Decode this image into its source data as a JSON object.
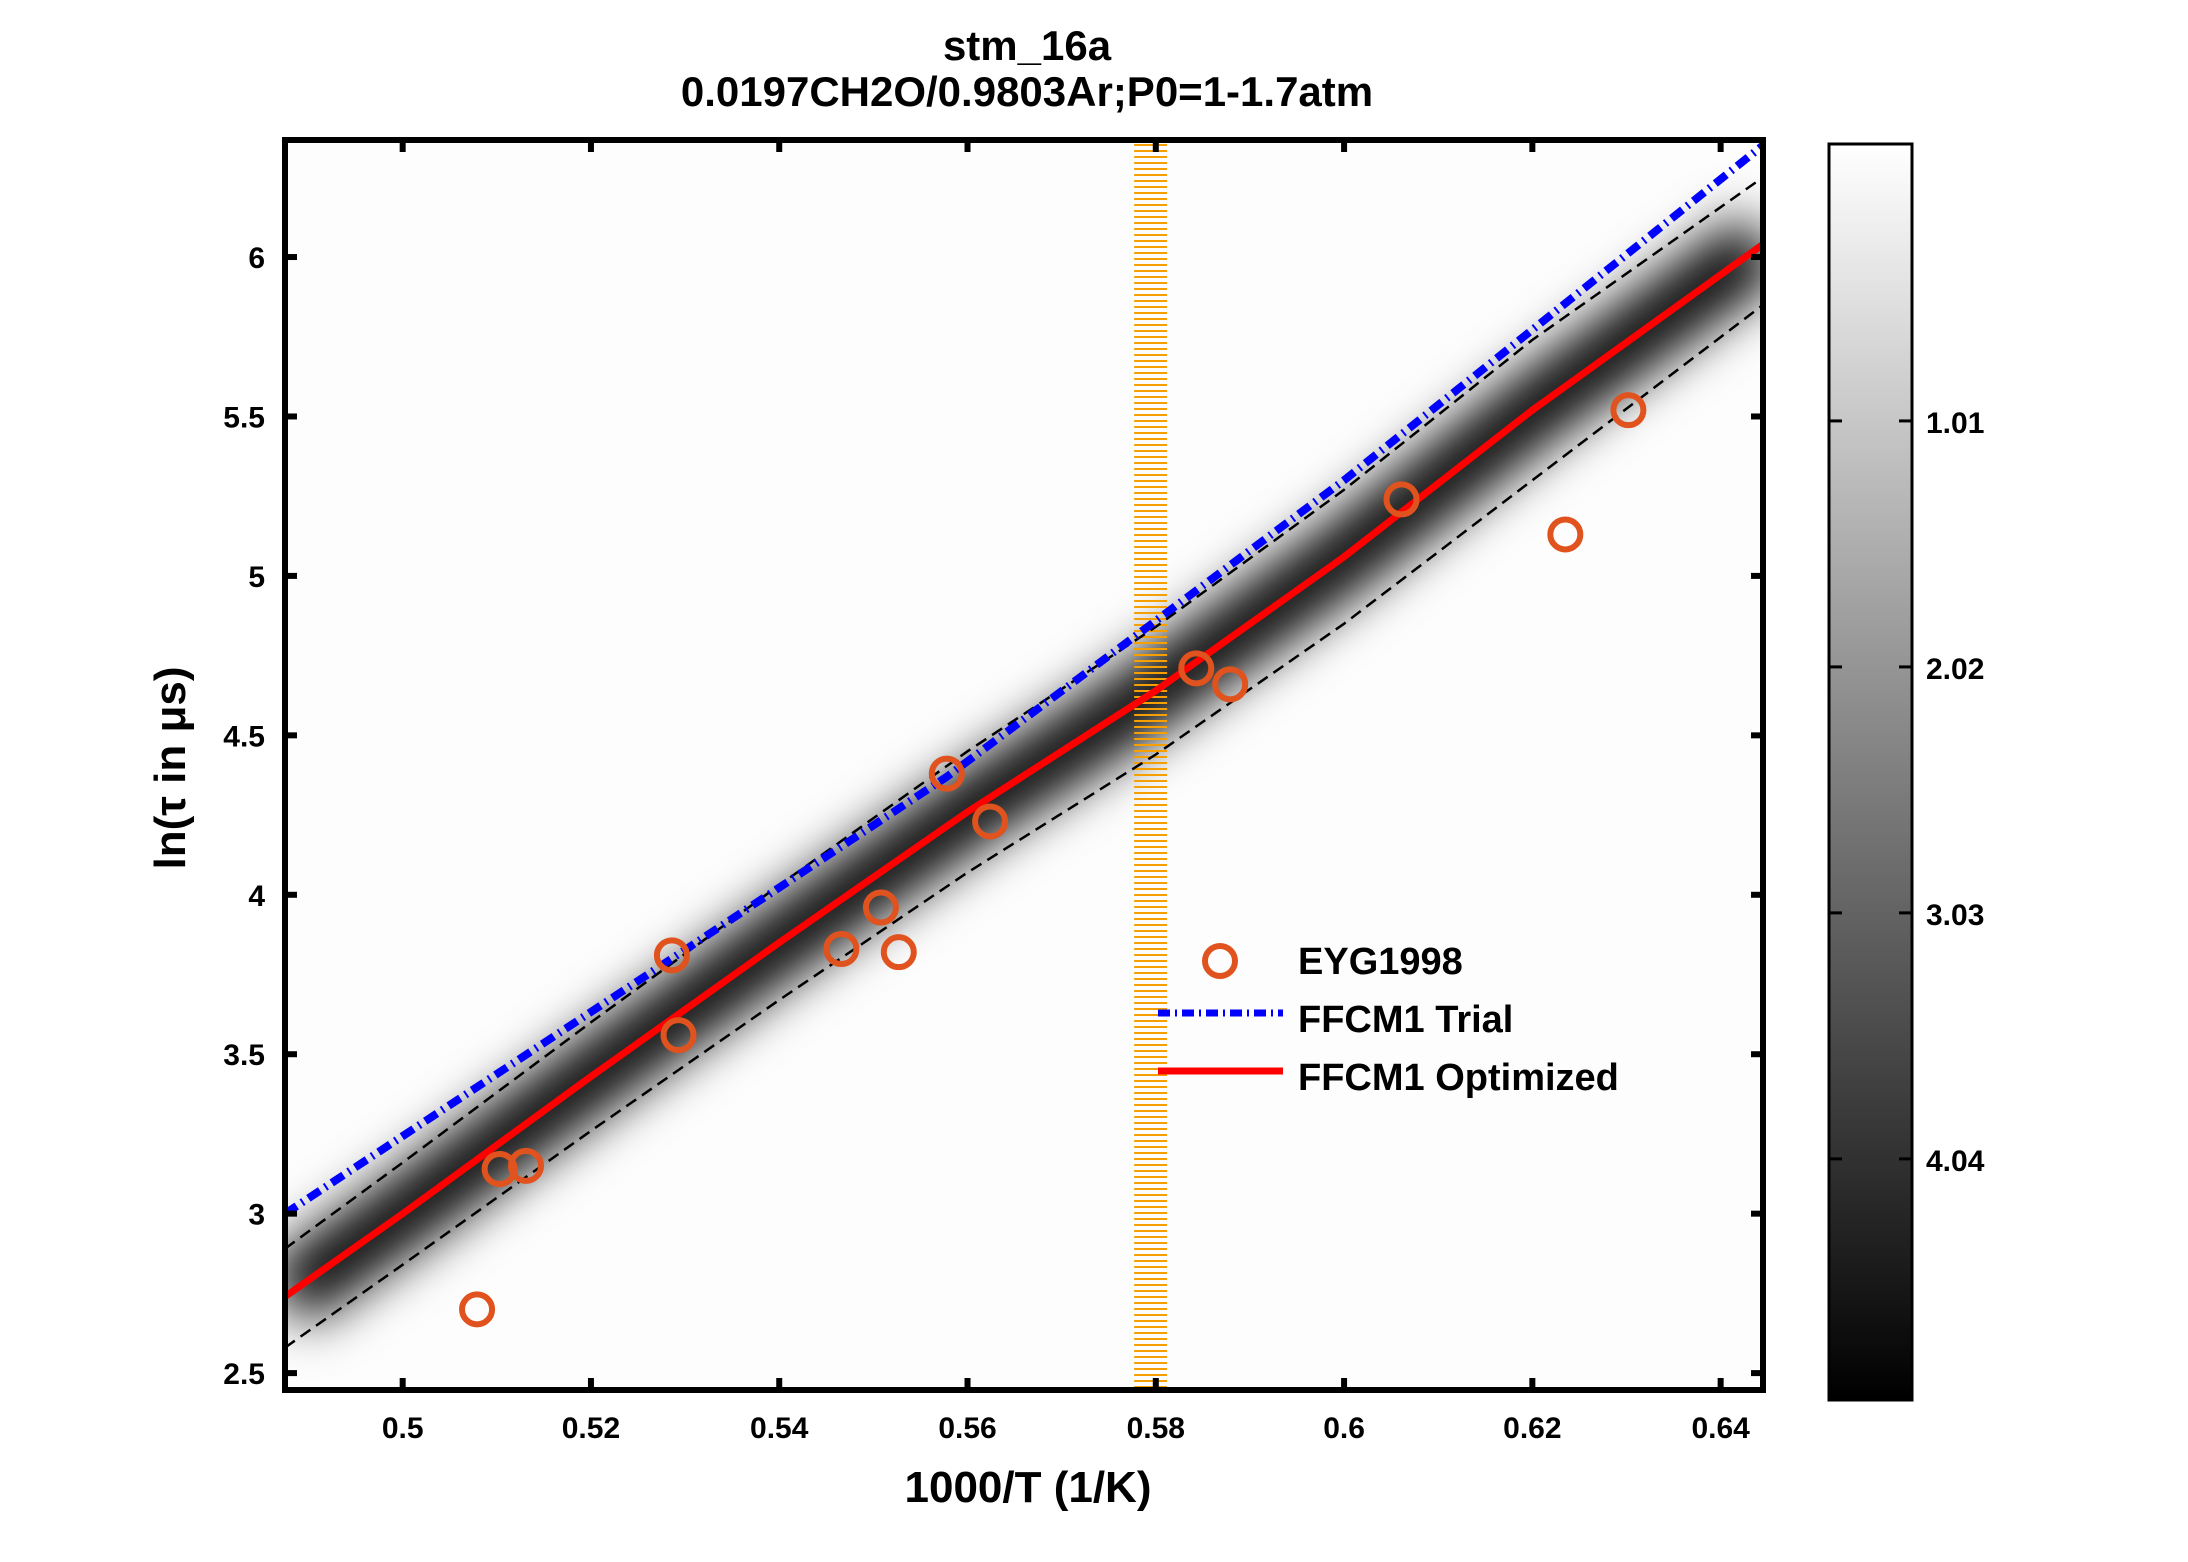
{
  "chart_data": {
    "type": "scatter",
    "title": "stm_16a",
    "subtitle": "0.0197CH2O/0.9803Ar;P0=1-1.7atm",
    "xlabel": "1000/T (1/K)",
    "ylabel": "ln(τ in μs)",
    "xlim": [
      0.4875,
      0.6445
    ],
    "ylim": [
      2.447,
      6.367
    ],
    "xticks": [
      "0.5",
      "0.52",
      "0.54",
      "0.56",
      "0.58",
      "0.6",
      "0.62",
      "0.64"
    ],
    "yticks": [
      "2.5",
      "3",
      "3.5",
      "4",
      "4.5",
      "5",
      "5.5",
      "6"
    ],
    "grid": false,
    "legend_placement": "center-right",
    "series": [
      {
        "name": "EYG1998",
        "kind": "markers",
        "marker": "circle",
        "color": "#e0521e",
        "x": [
          0.5079,
          0.5103,
          0.5131,
          0.5286,
          0.5293,
          0.5466,
          0.5508,
          0.5527,
          0.5578,
          0.5624,
          0.5843,
          0.5879,
          0.6061,
          0.6235,
          0.6302
        ],
        "y": [
          2.7,
          3.14,
          3.15,
          3.81,
          3.56,
          3.83,
          3.96,
          3.82,
          4.38,
          4.23,
          4.71,
          4.66,
          5.24,
          5.13,
          5.52
        ]
      },
      {
        "name": "FFCM1 Trial",
        "kind": "line",
        "style": "dash-dot",
        "color": "#0000ff",
        "x": [
          0.4875,
          0.5286,
          0.5578,
          0.6,
          0.6445
        ],
        "y": [
          3.0,
          3.8,
          4.37,
          5.3,
          6.35
        ]
      },
      {
        "name": "FFCM1 Optimized",
        "kind": "line",
        "style": "solid",
        "color": "#ff0000",
        "x": [
          0.4875,
          0.5,
          0.52,
          0.54,
          0.56,
          0.58,
          0.6,
          0.62,
          0.6445
        ],
        "y": [
          2.74,
          3.0,
          3.43,
          3.85,
          4.26,
          4.64,
          5.06,
          5.52,
          6.04
        ]
      }
    ],
    "uncertainty_bounds": {
      "color": "#000000",
      "style": "dashed",
      "x": [
        0.4875,
        0.5,
        0.52,
        0.54,
        0.56,
        0.58,
        0.6,
        0.62,
        0.6445
      ],
      "upper": [
        2.89,
        3.16,
        3.6,
        4.03,
        4.45,
        4.84,
        5.27,
        5.74,
        6.25
      ],
      "lower": [
        2.58,
        2.84,
        3.26,
        3.67,
        4.07,
        4.44,
        4.85,
        5.3,
        5.85
      ]
    },
    "highlight_band": {
      "x_range": [
        0.5777,
        0.5812
      ],
      "color": "#f5a000"
    },
    "colorbar": {
      "range": [
        -0.127,
        5.03
      ],
      "ticks": [
        "1.01",
        "2.02",
        "3.03",
        "4.04"
      ],
      "tick_values": [
        1.01,
        2.02,
        3.03,
        4.04
      ],
      "colormap": "gray-reversed"
    }
  }
}
